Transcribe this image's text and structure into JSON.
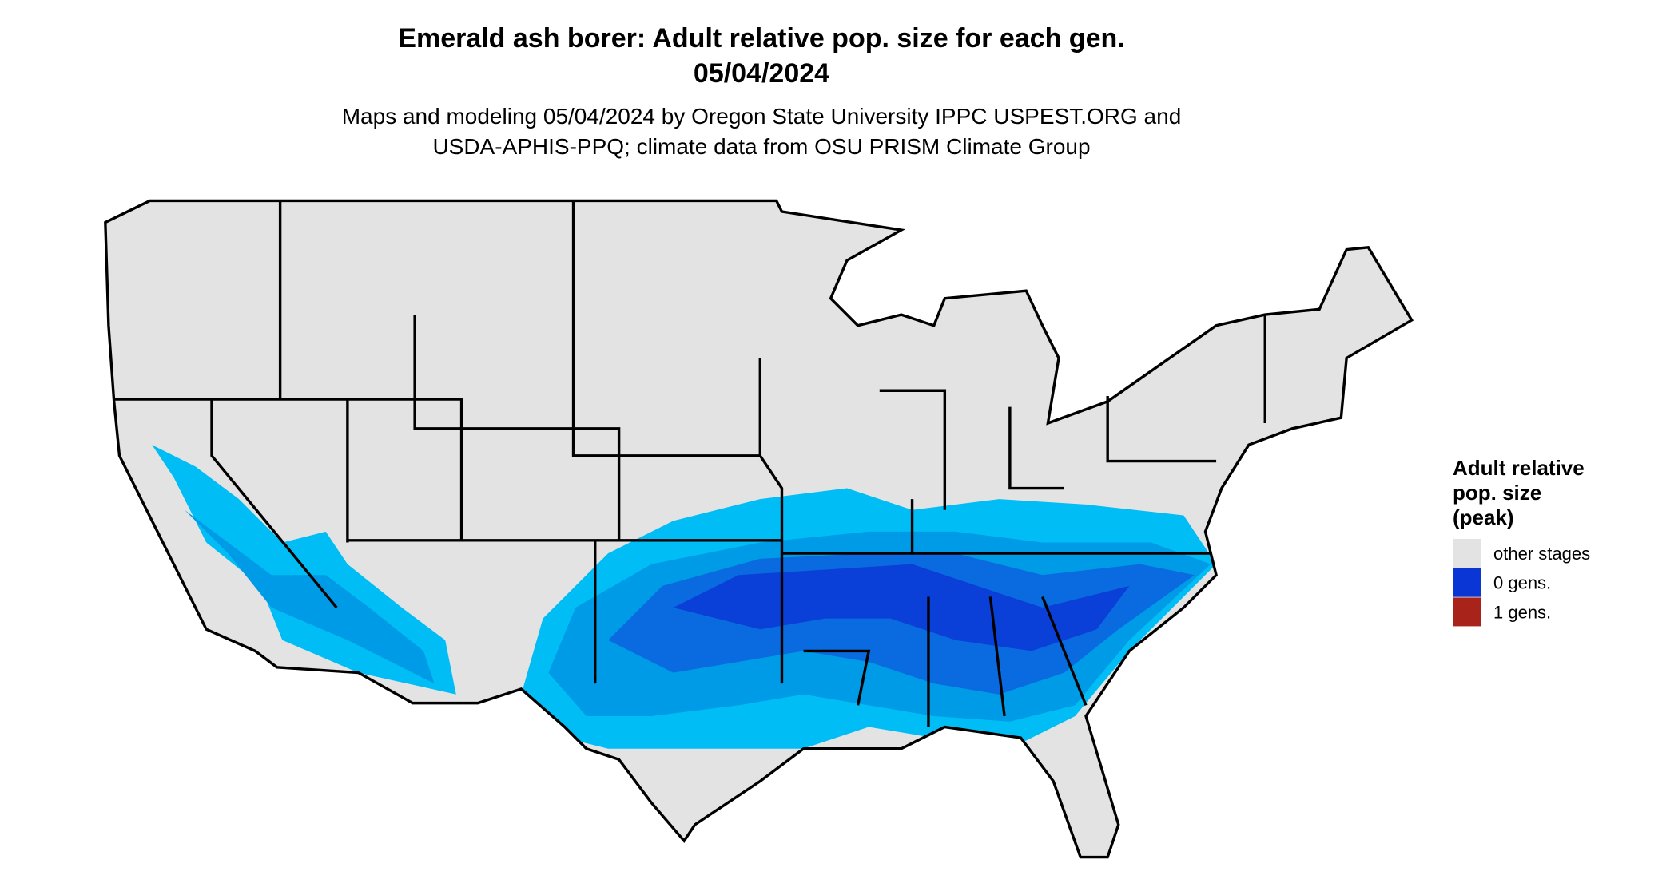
{
  "title": "Emerald ash borer: Adult relative pop. size for each gen.",
  "date": "05/04/2024",
  "subtitle": [
    "Maps and modeling 05/04/2024 by Oregon State University IPPC USPEST.ORG and",
    "USDA-APHIS-PPQ; climate data from OSU PRISM Climate Group"
  ],
  "legend": {
    "title": [
      "Adult relative",
      "pop. size",
      "(peak)"
    ],
    "items": [
      {
        "label": "other stages",
        "color": "#e3e3e3"
      },
      {
        "label": "0 gens.",
        "color": "#0a36d6"
      },
      {
        "label": "1 gens.",
        "color": "#a8241a"
      }
    ]
  }
}
